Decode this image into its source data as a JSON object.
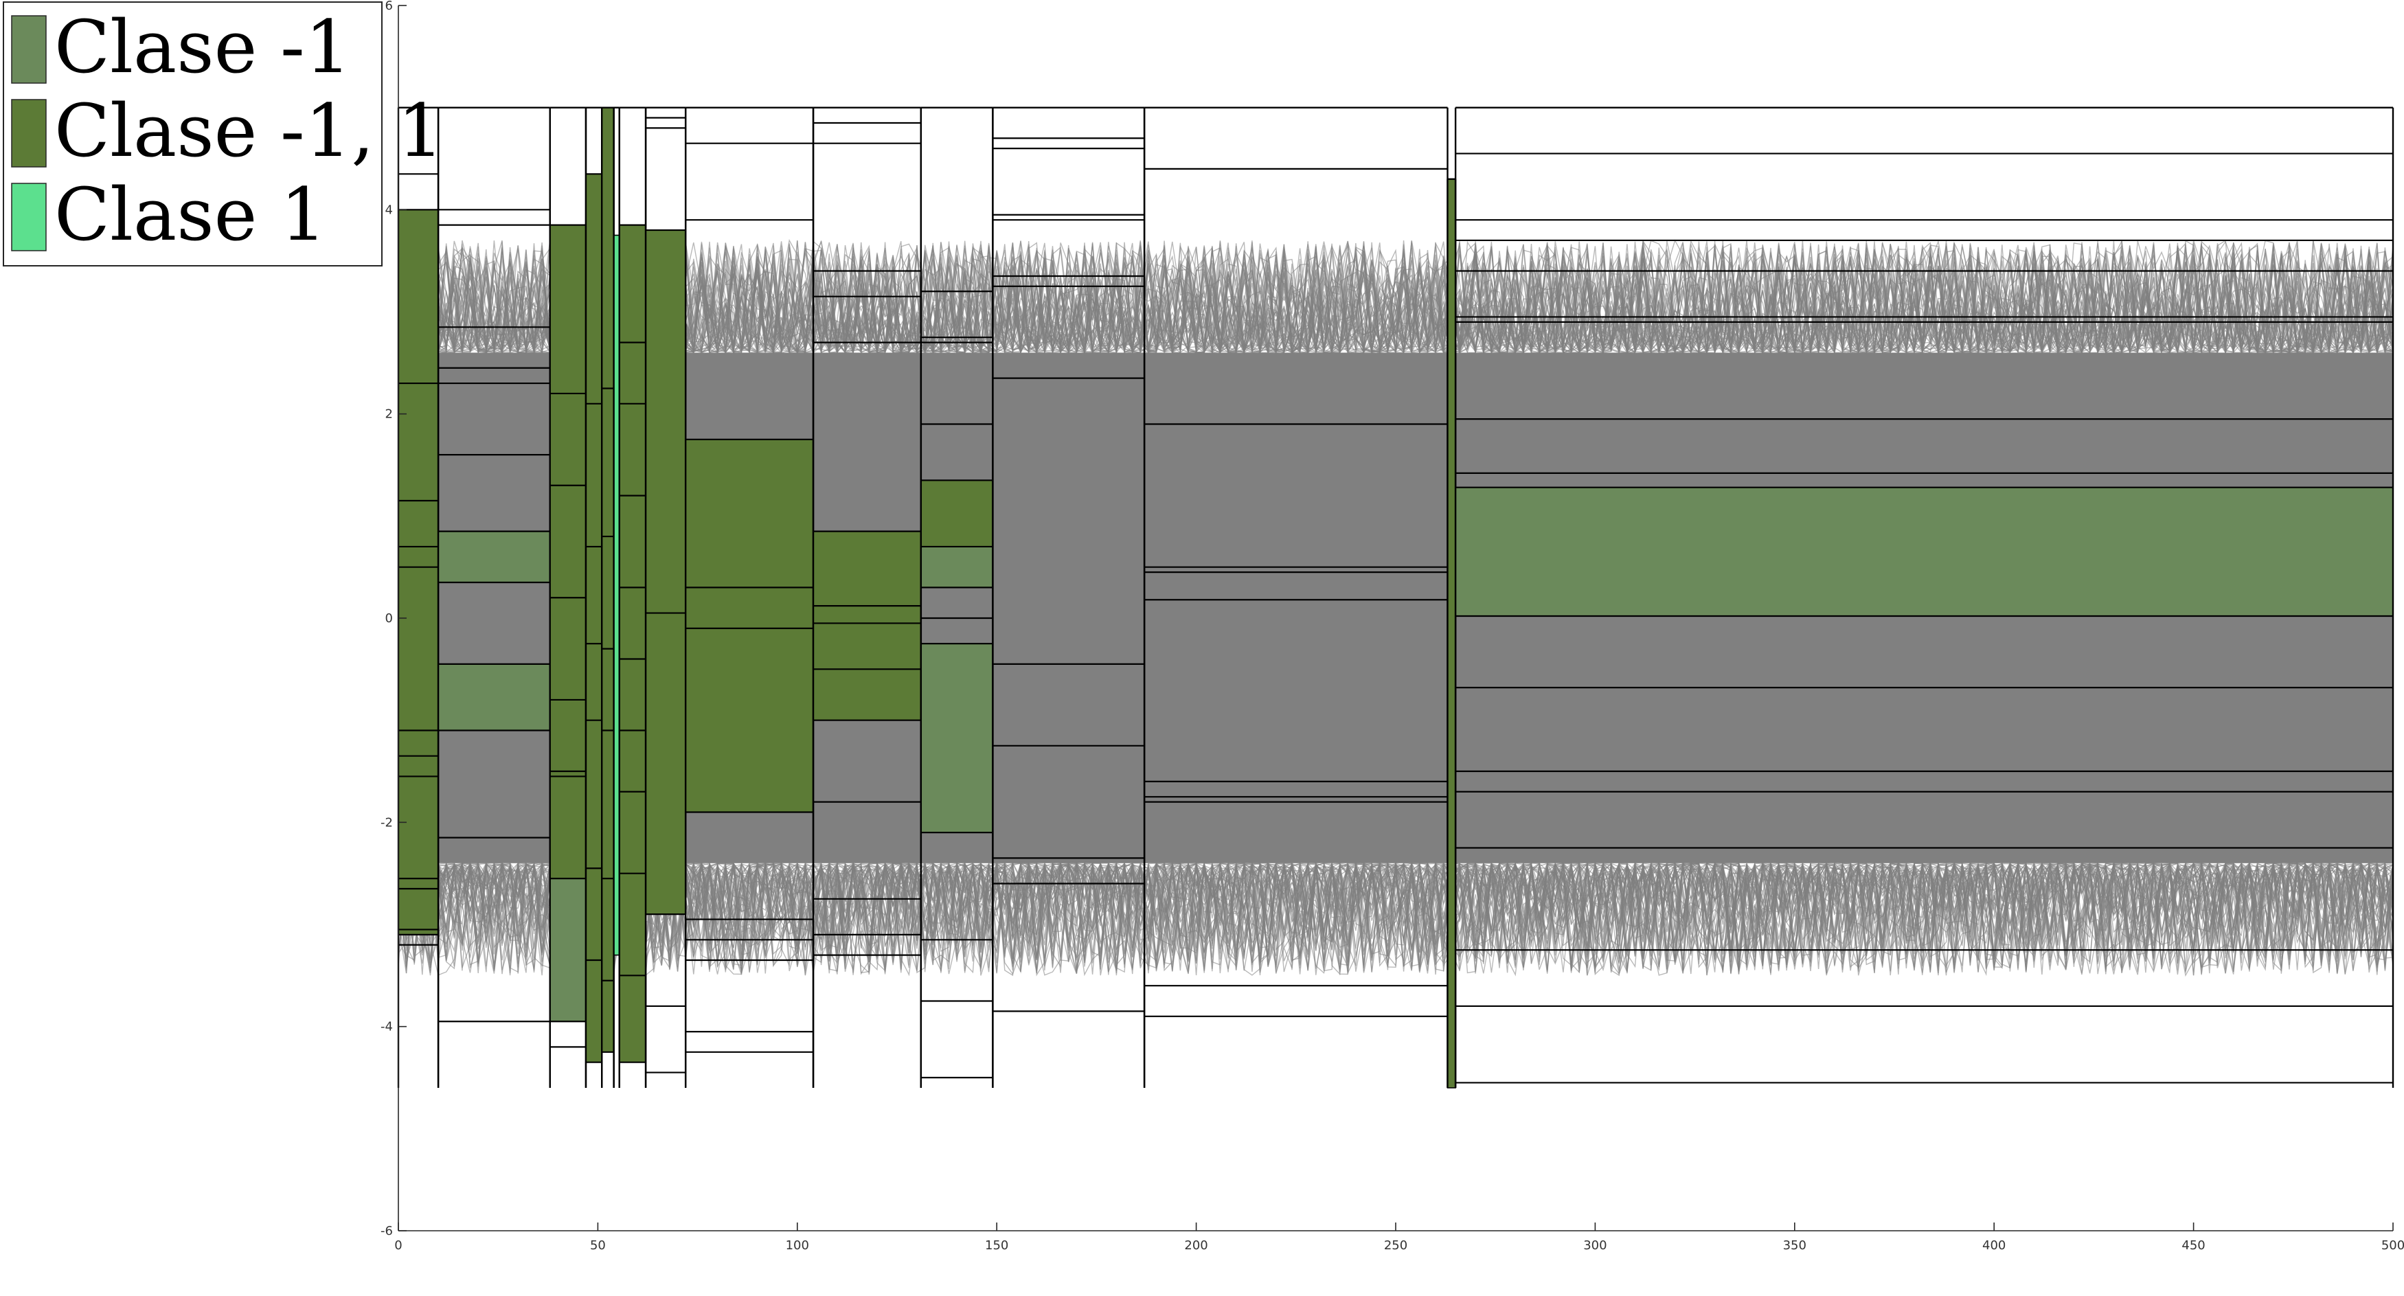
{
  "chart_data": {
    "type": "area",
    "title": "",
    "xlabel": "",
    "ylabel": "",
    "xlim": [
      0,
      500
    ],
    "ylim": [
      -6,
      6
    ],
    "grid": false,
    "legend_position": "top-left",
    "x_ticks": [
      0,
      50,
      100,
      150,
      200,
      250,
      300,
      350,
      400,
      450,
      500
    ],
    "y_ticks": [
      -6,
      -4,
      -2,
      0,
      2,
      4,
      6
    ],
    "signal_envelope": {
      "color": "#808080",
      "upper": 2.6,
      "lower": -2.4,
      "spread": 1.1,
      "count": 120
    },
    "colors": {
      "class_neg": "#6b8a5b",
      "class_both": "#5c7b36",
      "class_pos": "#5ce08e",
      "noise": "#808080",
      "line": "#000000"
    },
    "legend": [
      {
        "label": "Clase -1",
        "color": "#6b8a5b"
      },
      {
        "label": "Clase -1, 1",
        "color": "#5c7b36"
      },
      {
        "label": "Clase 1",
        "color": "#5ce08e"
      }
    ],
    "segments": [
      {
        "x0": 0,
        "x1": 10,
        "top": 5,
        "bottom": -4.6,
        "lines": [
          4.35,
          4.0,
          2.3,
          1.15,
          0.7,
          0.5,
          -1.1,
          -1.35,
          -1.55,
          -2.55,
          -2.65,
          -3.05,
          -3.1,
          -3.2
        ],
        "blocks": [
          {
            "y0": 4.0,
            "y1": -3.1,
            "cls": "both"
          }
        ]
      },
      {
        "x0": 10,
        "x1": 38,
        "top": 5,
        "bottom": -4.6,
        "lines": [
          4.0,
          3.85,
          2.85,
          2.45,
          2.3,
          1.6,
          0.85,
          0.35,
          -0.45,
          -1.1,
          -2.15,
          -3.95
        ],
        "blocks": [
          {
            "y0": 0.85,
            "y1": 0.35,
            "cls": "neg"
          },
          {
            "y0": -0.45,
            "y1": -1.1,
            "cls": "neg"
          }
        ]
      },
      {
        "x0": 38,
        "x1": 47,
        "top": 5,
        "bottom": -4.6,
        "lines": [
          3.85,
          2.2,
          1.3,
          0.2,
          -0.8,
          -1.5,
          -1.55,
          -2.55,
          -3.95,
          -4.2
        ],
        "blocks": [
          {
            "y0": 3.85,
            "y1": -1.5,
            "cls": "both"
          },
          {
            "y0": -1.5,
            "y1": -2.55,
            "cls": "both"
          },
          {
            "y0": -2.55,
            "y1": -3.95,
            "cls": "neg"
          }
        ]
      },
      {
        "x0": 47,
        "x1": 51,
        "top": 5,
        "bottom": -4.6,
        "lines": [
          4.35,
          2.1,
          0.7,
          -0.25,
          -1.0,
          -2.45,
          -3.35,
          -4.35
        ],
        "blocks": [
          {
            "y0": 4.35,
            "y1": -4.35,
            "cls": "both"
          }
        ]
      },
      {
        "x0": 51,
        "x1": 54,
        "top": 5,
        "bottom": -4.6,
        "lines": [
          2.25,
          0.8,
          -0.3,
          -1.1,
          -2.55,
          -3.55,
          -4.25
        ],
        "blocks": [
          {
            "y0": 5.0,
            "y1": -4.25,
            "cls": "both"
          }
        ]
      },
      {
        "x0": 54,
        "x1": 55.4,
        "top": 5,
        "bottom": -4.6,
        "lines": [],
        "blocks": [
          {
            "y0": 3.75,
            "y1": -3.3,
            "cls": "pos"
          }
        ]
      },
      {
        "x0": 55.4,
        "x1": 62,
        "top": 5,
        "bottom": -4.6,
        "lines": [
          3.85,
          2.7,
          2.1,
          1.2,
          0.3,
          -0.4,
          -1.1,
          -1.7,
          -2.5,
          -3.5,
          -4.35
        ],
        "blocks": [
          {
            "y0": 3.85,
            "y1": -4.35,
            "cls": "both"
          }
        ]
      },
      {
        "x0": 62,
        "x1": 72,
        "top": 5,
        "bottom": -4.6,
        "lines": [
          4.9,
          4.8,
          3.8,
          0.05,
          -2.9,
          -3.8,
          -4.45
        ],
        "blocks": [
          {
            "y0": 3.8,
            "y1": -2.9,
            "cls": "both"
          }
        ]
      },
      {
        "x0": 72,
        "x1": 104,
        "top": 5,
        "bottom": -4.6,
        "lines": [
          4.65,
          3.9,
          1.75,
          0.3,
          -0.1,
          -1.9,
          -2.95,
          -3.15,
          -3.35,
          -4.05,
          -4.25
        ],
        "blocks": [
          {
            "y0": 1.75,
            "y1": -1.9,
            "cls": "both"
          }
        ]
      },
      {
        "x0": 104,
        "x1": 131,
        "top": 5,
        "bottom": -4.6,
        "lines": [
          4.85,
          4.65,
          3.4,
          3.15,
          2.7,
          0.85,
          0.12,
          -0.05,
          -0.5,
          -1.0,
          -1.8,
          -2.75,
          -3.1,
          -3.3
        ],
        "blocks": [
          {
            "y0": 0.85,
            "y1": -1.0,
            "cls": "both"
          }
        ]
      },
      {
        "x0": 131,
        "x1": 149,
        "top": 5,
        "bottom": -4.6,
        "lines": [
          3.2,
          2.75,
          2.7,
          1.9,
          1.35,
          0.7,
          0.3,
          0.0,
          -0.25,
          -2.1,
          -3.15,
          -3.75,
          -4.5
        ],
        "blocks": [
          {
            "y0": 1.35,
            "y1": 0.7,
            "cls": "both"
          },
          {
            "y0": 0.7,
            "y1": 0.3,
            "cls": "neg"
          },
          {
            "y0": -0.25,
            "y1": -2.1,
            "cls": "neg"
          }
        ]
      },
      {
        "x0": 149,
        "x1": 187,
        "top": 5,
        "bottom": -4.6,
        "lines": [
          4.7,
          4.6,
          3.95,
          3.9,
          3.35,
          3.25,
          2.35,
          -0.45,
          -1.25,
          -2.35,
          -2.6,
          -3.85
        ],
        "blocks": []
      },
      {
        "x0": 187,
        "x1": 263,
        "top": 5,
        "bottom": -4.6,
        "lines": [
          4.4,
          1.9,
          0.5,
          0.45,
          0.18,
          -1.6,
          -1.75,
          -1.8,
          -3.6,
          -3.9
        ],
        "blocks": []
      },
      {
        "x0": 263,
        "x1": 265,
        "top": 4.3,
        "bottom": -4.6,
        "lines": [],
        "blocks": [
          {
            "y0": 4.3,
            "y1": -4.6,
            "cls": "both"
          }
        ]
      },
      {
        "x0": 265,
        "x1": 500,
        "top": 5,
        "bottom": -4.6,
        "lines": [
          4.55,
          3.9,
          3.7,
          3.4,
          2.95,
          2.9,
          1.95,
          1.42,
          1.28,
          0.02,
          -0.68,
          -1.5,
          -1.7,
          -2.25,
          -3.25,
          -3.8,
          -4.55
        ],
        "blocks": [
          {
            "y0": 1.28,
            "y1": 0.02,
            "cls": "neg"
          }
        ]
      }
    ]
  }
}
